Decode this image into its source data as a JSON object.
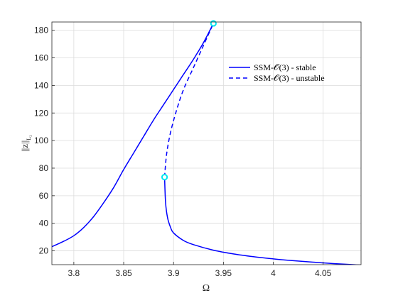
{
  "chart_data": {
    "type": "line",
    "xlabel": "Ω",
    "ylabel_main": "||z||",
    "ylabel_sub": "L₂",
    "xlim": [
      3.778,
      4.088
    ],
    "ylim": [
      10,
      186
    ],
    "xticks": [
      3.8,
      3.85,
      3.9,
      3.95,
      4.0,
      4.05
    ],
    "xtick_labels": [
      "3.8",
      "3.85",
      "3.9",
      "3.95",
      "4",
      "4.05"
    ],
    "yticks": [
      20,
      40,
      60,
      80,
      100,
      120,
      140,
      160,
      180
    ],
    "ytick_labels": [
      "20",
      "40",
      "60",
      "80",
      "100",
      "120",
      "140",
      "160",
      "180"
    ],
    "grid": true,
    "legend_position": "top-right",
    "series": [
      {
        "name": "SSM-𝒪(3) - stable",
        "style": "solid",
        "color": "#0000ff",
        "segments": [
          {
            "x": [
              3.778,
              3.79,
              3.8,
              3.81,
              3.82,
              3.83,
              3.84,
              3.85,
              3.86,
              3.87,
              3.88,
              3.89,
              3.9,
              3.91,
              3.92,
              3.93,
              3.94
            ],
            "y": [
              23,
              27,
              31,
              37,
              45,
              55,
              66,
              79,
              91,
              103,
              115,
              126,
              137,
              148,
              159,
              171,
              185
            ]
          },
          {
            "x": [
              3.891,
              3.892,
              3.894,
              3.897,
              3.9,
              3.91,
              3.92,
              3.94,
              3.96,
              3.98,
              4.0,
              4.02,
              4.04,
              4.06,
              4.088
            ],
            "y": [
              73.5,
              55,
              44,
              37,
              33,
              27.5,
              24.5,
              20.5,
              17.8,
              15.8,
              14.2,
              12.9,
              11.8,
              10.8,
              9.7
            ]
          }
        ]
      },
      {
        "name": "SSM-𝒪(3) - unstable",
        "style": "dashed",
        "color": "#0000ff",
        "segments": [
          {
            "x": [
              3.891,
              3.893,
              3.897,
              3.903,
              3.91,
              3.92,
              3.93,
              3.94
            ],
            "y": [
              73.5,
              90,
              106,
              122,
              137,
              153,
              169,
              185
            ]
          }
        ]
      }
    ],
    "markers": [
      {
        "x": 3.94,
        "y": 185,
        "color": "#00e5ee"
      },
      {
        "x": 3.891,
        "y": 73.5,
        "color": "#00e5ee"
      }
    ]
  }
}
